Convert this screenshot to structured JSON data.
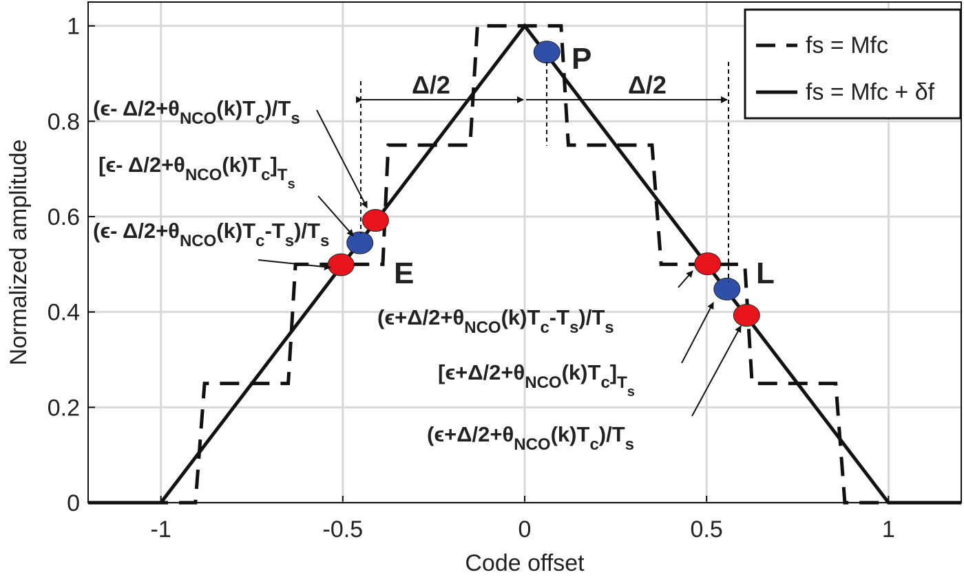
{
  "chart_data": {
    "type": "line",
    "xlabel": "Code offset",
    "ylabel": "Normalized amplitude",
    "xlim": [
      -1.2,
      1.2
    ],
    "ylim": [
      0,
      1.05
    ],
    "xticks": [
      -1,
      -0.5,
      0,
      0.5,
      1
    ],
    "yticks": [
      0,
      0.2,
      0.4,
      0.6,
      0.8,
      1
    ],
    "grid": true,
    "legend": "upper right",
    "series": [
      {
        "name": "fs = Mfc",
        "color": "#111111",
        "style": "dashed",
        "x": [
          -1.2,
          -0.905,
          -0.88,
          -0.65,
          -0.63,
          -0.39,
          -0.375,
          -0.15,
          -0.13,
          0.1,
          0.12,
          0.35,
          0.375,
          0.605,
          0.625,
          0.855,
          0.88,
          1.2
        ],
        "values": [
          0,
          0,
          0.25,
          0.25,
          0.5,
          0.5,
          0.75,
          0.75,
          1,
          1,
          0.75,
          0.75,
          0.5,
          0.5,
          0.25,
          0.25,
          0,
          0
        ]
      },
      {
        "name": "fs = Mfc + δf",
        "color": "#111111",
        "style": "solid",
        "x": [
          -1.2,
          -1,
          0,
          1,
          1.2
        ],
        "values": [
          0,
          0,
          1,
          0,
          0
        ]
      }
    ],
    "points": [
      {
        "color": "#e8141c",
        "x": [
          -0.505,
          -0.41,
          0.503,
          0.61
        ],
        "values": [
          0.499,
          0.592,
          0.501,
          0.393
        ]
      },
      {
        "color": "#2f4fa8",
        "x": [
          -0.453,
          0.061,
          0.556
        ],
        "values": [
          0.545,
          0.945,
          0.448
        ]
      }
    ],
    "labels": [
      "P",
      "E",
      "L",
      "Δ/2",
      "Δ/2"
    ],
    "annotations": [
      {
        "parts": [
          {
            "text": "(ϵ- Δ/2+θ"
          },
          {
            "text": "NCO",
            "level": 1
          },
          {
            "text": "(k)T"
          },
          {
            "text": "c",
            "level": 1
          },
          {
            "text": ")/T"
          },
          {
            "text": "s",
            "level": 1
          }
        ]
      },
      {
        "parts": [
          {
            "text": "[ϵ- Δ/2+θ"
          },
          {
            "text": "NCO",
            "level": 1
          },
          {
            "text": "(k)T"
          },
          {
            "text": "c",
            "level": 1
          },
          {
            "text": "]"
          },
          {
            "text": "T",
            "level": 1
          },
          {
            "text": "s",
            "level": 2
          }
        ]
      },
      {
        "parts": [
          {
            "text": "(ϵ- Δ/2+θ"
          },
          {
            "text": "NCO",
            "level": 1
          },
          {
            "text": "(k)T"
          },
          {
            "text": "c",
            "level": 1
          },
          {
            "text": "-T"
          },
          {
            "text": "s",
            "level": 1
          },
          {
            "text": ")/T"
          },
          {
            "text": "s",
            "level": 1
          }
        ]
      },
      {
        "parts": [
          {
            "text": "(ϵ+Δ/2+θ"
          },
          {
            "text": "NCO",
            "level": 1
          },
          {
            "text": "(k)T"
          },
          {
            "text": "c",
            "level": 1
          },
          {
            "text": "-T"
          },
          {
            "text": "s",
            "level": 1
          },
          {
            "text": ")/T"
          },
          {
            "text": "s",
            "level": 1
          }
        ]
      },
      {
        "parts": [
          {
            "text": "[ϵ+Δ/2+θ"
          },
          {
            "text": "NCO",
            "level": 1
          },
          {
            "text": "(k)T"
          },
          {
            "text": "c",
            "level": 1
          },
          {
            "text": "]"
          },
          {
            "text": "T",
            "level": 1
          },
          {
            "text": "s",
            "level": 2
          }
        ]
      },
      {
        "parts": [
          {
            "text": "(ϵ+Δ/2+θ"
          },
          {
            "text": "NCO",
            "level": 1
          },
          {
            "text": "(k)T"
          },
          {
            "text": "c",
            "level": 1
          },
          {
            "text": ")/T"
          },
          {
            "text": "s",
            "level": 1
          }
        ]
      }
    ]
  }
}
